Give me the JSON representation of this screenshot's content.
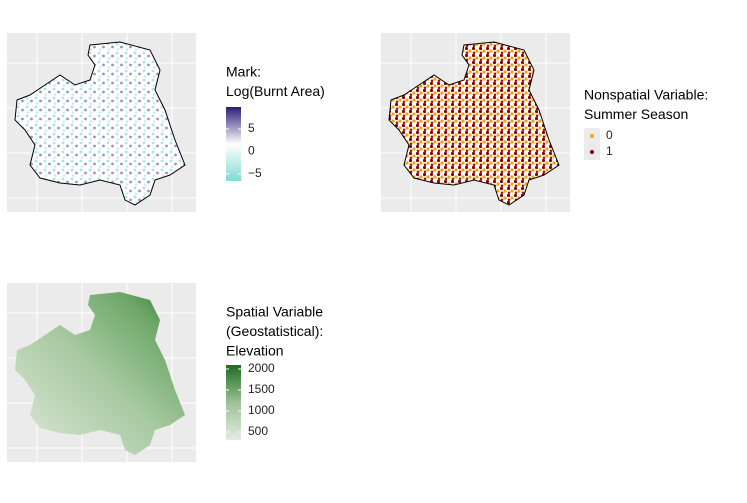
{
  "panels": [
    {
      "legend_title": [
        "Mark:",
        "Log(Burnt Area)"
      ],
      "colorbar": {
        "colors": [
          "#7fdcd2",
          "#ffffff",
          "#2b1c78"
        ],
        "lim": [
          -6.6,
          9.9
        ],
        "ticks": [
          5,
          0,
          {
            "value": -5,
            "label": "−5"
          }
        ]
      }
    },
    {
      "legend_title": [
        "Nonspatial Variable:",
        "Summer Season"
      ],
      "keys": [
        {
          "label": "0",
          "color": "#f5a300"
        },
        {
          "label": "1",
          "color": "#8b0000"
        }
      ]
    },
    {
      "legend_title": [
        "Spatial Variable",
        "(Geostatistical):",
        "Elevation"
      ],
      "colorbar": {
        "colors": [
          "#e3ecdf",
          "#9cc296",
          "#1f6b1f"
        ],
        "lim": [
          310,
          2095
        ],
        "ticks": [
          2000,
          1500,
          1000,
          500
        ]
      }
    }
  ]
}
